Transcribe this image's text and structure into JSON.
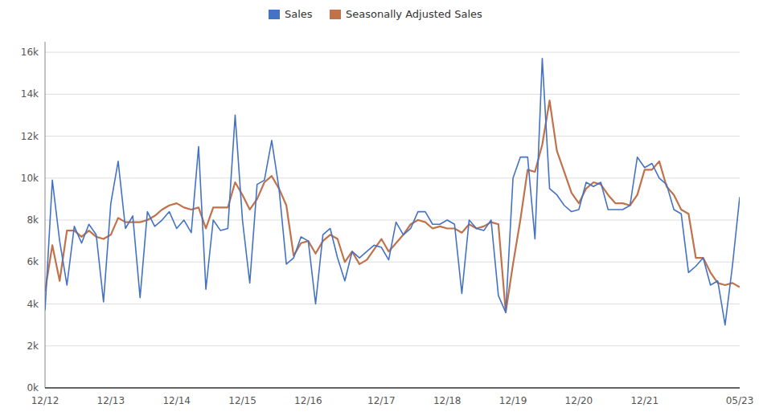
{
  "chart_data": {
    "type": "line",
    "categories": [
      "12/12",
      null,
      null,
      null,
      null,
      null,
      null,
      null,
      null,
      "12/13",
      null,
      null,
      null,
      null,
      null,
      null,
      null,
      null,
      "12/14",
      null,
      null,
      null,
      null,
      null,
      null,
      null,
      null,
      "12/15",
      null,
      null,
      null,
      null,
      null,
      null,
      null,
      null,
      "12/16",
      null,
      null,
      null,
      null,
      null,
      null,
      null,
      null,
      null,
      "12/17",
      null,
      null,
      null,
      null,
      null,
      null,
      null,
      null,
      "12/18",
      null,
      null,
      null,
      null,
      null,
      null,
      null,
      null,
      "12/19",
      null,
      null,
      null,
      null,
      null,
      null,
      null,
      null,
      "12/20",
      null,
      null,
      null,
      null,
      null,
      null,
      null,
      null,
      "12/21",
      null,
      null,
      null,
      null,
      null,
      null,
      null,
      null,
      null,
      null,
      null,
      null,
      "05/23"
    ],
    "series": [
      {
        "name": "Sales",
        "color": "#4472C4",
        "values": [
          3700,
          9900,
          7000,
          4900,
          7700,
          6900,
          7800,
          7300,
          4100,
          8800,
          10800,
          7600,
          8200,
          4300,
          8400,
          7700,
          8000,
          8400,
          7600,
          8000,
          7400,
          11500,
          4700,
          8000,
          7500,
          7600,
          13000,
          8000,
          5000,
          9700,
          9900,
          11800,
          9500,
          5900,
          6200,
          7200,
          7000,
          4000,
          7300,
          7600,
          6200,
          5100,
          6500,
          6200,
          6500,
          6800,
          6700,
          6100,
          7900,
          7300,
          7600,
          8400,
          8400,
          7800,
          7800,
          8000,
          7800,
          4500,
          8000,
          7600,
          7500,
          8000,
          4400,
          3600,
          10000,
          11000,
          11000,
          7100,
          15700,
          9500,
          9200,
          8700,
          8400,
          8500,
          9800,
          9600,
          9800,
          8500,
          8500,
          8500,
          8700,
          11000,
          10500,
          10700,
          10000,
          9700,
          8500,
          8300,
          5500,
          5800,
          6200,
          4900,
          5100,
          3000,
          5800,
          9100
        ]
      },
      {
        "name": "Seasonally Adjusted Sales",
        "color": "#C0724A",
        "values": [
          4600,
          6800,
          5100,
          7500,
          7500,
          7200,
          7500,
          7200,
          7100,
          7300,
          8100,
          7900,
          7900,
          7900,
          8000,
          8200,
          8500,
          8700,
          8800,
          8600,
          8500,
          8600,
          7600,
          8600,
          8600,
          8600,
          9800,
          9200,
          8500,
          9000,
          9800,
          10100,
          9500,
          8700,
          6300,
          6900,
          7000,
          6400,
          7000,
          7300,
          7100,
          6000,
          6500,
          5900,
          6100,
          6600,
          7100,
          6500,
          6900,
          7300,
          7800,
          8000,
          7900,
          7600,
          7700,
          7600,
          7600,
          7400,
          7800,
          7600,
          7700,
          7900,
          7800,
          3600,
          5900,
          8000,
          10400,
          10300,
          11600,
          13700,
          11300,
          10300,
          9300,
          8800,
          9500,
          9800,
          9700,
          9200,
          8800,
          8800,
          8700,
          9200,
          10400,
          10400,
          10800,
          9600,
          9200,
          8500,
          8300,
          6200,
          6200,
          5500,
          5000,
          4900,
          5000,
          4800
        ]
      }
    ],
    "ylim": [
      0,
      16500
    ],
    "yticks": [
      {
        "value": 0,
        "label": "0k"
      },
      {
        "value": 2000,
        "label": "2k"
      },
      {
        "value": 4000,
        "label": "4k"
      },
      {
        "value": 6000,
        "label": "6k"
      },
      {
        "value": 8000,
        "label": "8k"
      },
      {
        "value": 10000,
        "label": "10k"
      },
      {
        "value": 12000,
        "label": "12k"
      },
      {
        "value": 14000,
        "label": "14k"
      },
      {
        "value": 16000,
        "label": "16k"
      }
    ],
    "grid": true,
    "legend": "top"
  }
}
